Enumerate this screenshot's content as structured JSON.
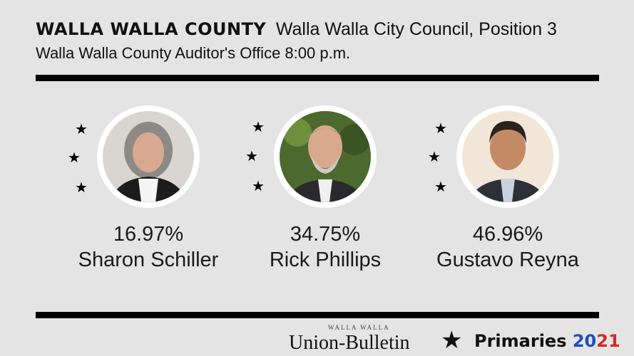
{
  "header": {
    "county": "WALLA WALLA COUNTY",
    "race": "Walla Walla City Council, Position 3",
    "source_time": "Walla Walla County Auditor's Office 8:00 p.m."
  },
  "candidates": [
    {
      "percent": "16.97%",
      "name": "Sharon Schiller"
    },
    {
      "percent": "34.75%",
      "name": "Rick Phillips"
    },
    {
      "percent": "46.96%",
      "name": "Gustavo Reyna"
    }
  ],
  "footer": {
    "logo_top": "WALLA WALLA",
    "logo_main": "Union-Bulletin",
    "label": "Primaries",
    "year_part1": "20",
    "year_part2": "21",
    "colors": {
      "blue": "#1f4fb8",
      "red": "#d42a2a"
    }
  }
}
